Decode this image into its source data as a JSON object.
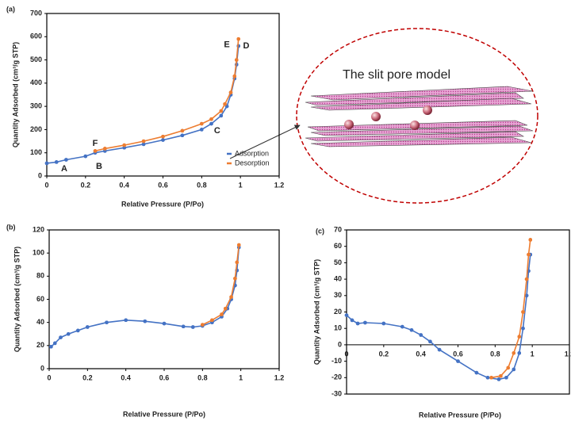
{
  "chart_data": [
    {
      "type": "line",
      "label": "(a)",
      "x_label": "Relative Pressure (P/Po)",
      "y_label": "Quantity Adsorbed (cm³/g STP)",
      "xlim": [
        0,
        1.2
      ],
      "xticks": [
        0,
        0.2,
        0.4,
        0.6,
        0.8,
        1,
        1.2
      ],
      "ylim": [
        0,
        700
      ],
      "yticks": [
        0,
        100,
        200,
        300,
        400,
        500,
        600,
        700
      ],
      "legend": "lower right",
      "series": [
        {
          "name": "Adsorption",
          "color": "#4472c4",
          "x": [
            0,
            0.05,
            0.1,
            0.2,
            0.25,
            0.3,
            0.4,
            0.5,
            0.6,
            0.7,
            0.8,
            0.85,
            0.9,
            0.93,
            0.95,
            0.97,
            0.98,
            0.99
          ],
          "values": [
            55,
            60,
            70,
            85,
            100,
            108,
            122,
            137,
            155,
            175,
            200,
            225,
            260,
            300,
            350,
            420,
            480,
            560
          ]
        },
        {
          "name": "Desorption",
          "color": "#ed7d31",
          "x": [
            0.99,
            0.98,
            0.97,
            0.95,
            0.92,
            0.9,
            0.85,
            0.8,
            0.7,
            0.6,
            0.5,
            0.4,
            0.3,
            0.25
          ],
          "values": [
            590,
            500,
            430,
            360,
            310,
            280,
            245,
            225,
            195,
            170,
            150,
            133,
            118,
            108
          ]
        }
      ],
      "annotations": [
        {
          "text": "A",
          "x": 0.09,
          "y": 30,
          "color": "#4472c4"
        },
        {
          "text": "B",
          "x": 0.27,
          "y": 40,
          "color": "#4472c4"
        },
        {
          "text": "C",
          "x": 0.88,
          "y": 195,
          "color": "#4472c4"
        },
        {
          "text": "D",
          "x": 1.03,
          "y": 560,
          "color": "#4472c4"
        },
        {
          "text": "E",
          "x": 0.93,
          "y": 565,
          "color": "#ed7d31"
        },
        {
          "text": "F",
          "x": 0.25,
          "y": 140,
          "color": "#ed7d31"
        }
      ]
    },
    {
      "type": "line",
      "label": "(b)",
      "x_label": "Relative Pressure (P/Po)",
      "y_label": "Quantity Adsorbed (cm³/g STP)",
      "xlim": [
        0,
        1.2
      ],
      "xticks": [
        0,
        0.2,
        0.4,
        0.6,
        0.8,
        1,
        1.2
      ],
      "ylim": [
        0,
        120
      ],
      "yticks": [
        0,
        20,
        40,
        60,
        80,
        100,
        120
      ],
      "series": [
        {
          "color": "#4472c4",
          "x": [
            0.01,
            0.03,
            0.06,
            0.1,
            0.15,
            0.2,
            0.3,
            0.4,
            0.5,
            0.6,
            0.7,
            0.75,
            0.8,
            0.85,
            0.9,
            0.93,
            0.95,
            0.97,
            0.98,
            0.99
          ],
          "values": [
            19,
            22,
            27,
            30,
            33,
            36,
            40,
            42,
            41,
            39,
            36.5,
            36,
            37,
            40,
            45,
            52,
            60,
            72,
            85,
            105
          ]
        },
        {
          "color": "#ed7d31",
          "x": [
            0.99,
            0.98,
            0.97,
            0.95,
            0.92,
            0.9,
            0.85,
            0.8
          ],
          "values": [
            107,
            92,
            78,
            62,
            52,
            47,
            42,
            38
          ]
        }
      ]
    },
    {
      "type": "line",
      "label": "(c)",
      "x_label": "Relative Pressure (P/Po)",
      "y_label": "Quantity Adsorbed (cm³/g STP)",
      "xlim": [
        0,
        1.2
      ],
      "xticks": [
        0,
        0.2,
        0.4,
        0.6,
        0.8,
        1,
        1.2
      ],
      "ylim": [
        -30,
        70
      ],
      "yticks": [
        -30,
        -20,
        -10,
        0,
        10,
        20,
        30,
        40,
        50,
        60,
        70
      ],
      "series": [
        {
          "color": "#4472c4",
          "x": [
            0,
            0.03,
            0.06,
            0.1,
            0.2,
            0.3,
            0.35,
            0.4,
            0.45,
            0.5,
            0.6,
            0.7,
            0.76,
            0.82,
            0.86,
            0.9,
            0.93,
            0.95,
            0.97,
            0.98,
            0.99
          ],
          "values": [
            18,
            15,
            13,
            13.5,
            13,
            11,
            9,
            6,
            2,
            -3,
            -10,
            -17,
            -20,
            -21,
            -20,
            -15,
            -5,
            10,
            30,
            45,
            55
          ]
        },
        {
          "color": "#ed7d31",
          "x": [
            0.99,
            0.98,
            0.97,
            0.95,
            0.93,
            0.9,
            0.87,
            0.83,
            0.78
          ],
          "values": [
            64,
            55,
            40,
            20,
            5,
            -5,
            -14,
            -19,
            -20
          ]
        }
      ]
    }
  ],
  "diagram": {
    "title": "The slit pore model"
  }
}
